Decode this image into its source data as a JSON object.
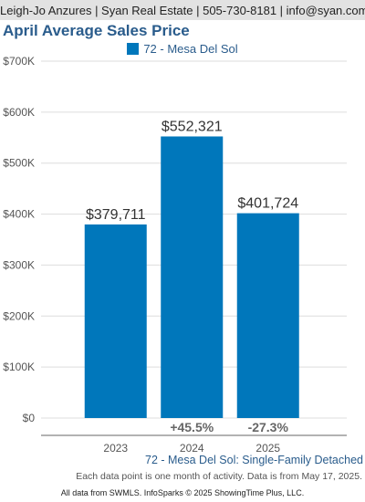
{
  "header": {
    "text": "Leigh-Jo Anzures | Syan Real Estate | 505-730-8181 | info@syan.com"
  },
  "chart_data": {
    "type": "bar",
    "title": "April Average Sales Price",
    "categories": [
      "2023",
      "2024",
      "2025"
    ],
    "series": [
      {
        "name": "72 - Mesa Del Sol",
        "values": [
          379711,
          552321,
          401724
        ],
        "value_labels": [
          "$379,711",
          "$552,321",
          "$401,724"
        ],
        "color": "#0077bb"
      }
    ],
    "change_labels": [
      "",
      "+45.5%",
      "-27.3%"
    ],
    "ylim": [
      0,
      700000
    ],
    "yticks": [
      0,
      100000,
      200000,
      300000,
      400000,
      500000,
      600000,
      700000
    ],
    "ytick_labels": [
      "$0",
      "$100K",
      "$200K",
      "$300K",
      "$400K",
      "$500K",
      "$600K",
      "$700K"
    ],
    "grid": true,
    "legend_position": "top-center",
    "xlabel": "",
    "ylabel": ""
  },
  "footer": {
    "subtitle": "72 - Mesa Del Sol: Single-Family Detached",
    "note": "Each data point is one month of activity. Data is from May 17, 2025.",
    "credit": "All data from SWMLS. InfoSparks © 2025 ShowingTime Plus, LLC."
  }
}
